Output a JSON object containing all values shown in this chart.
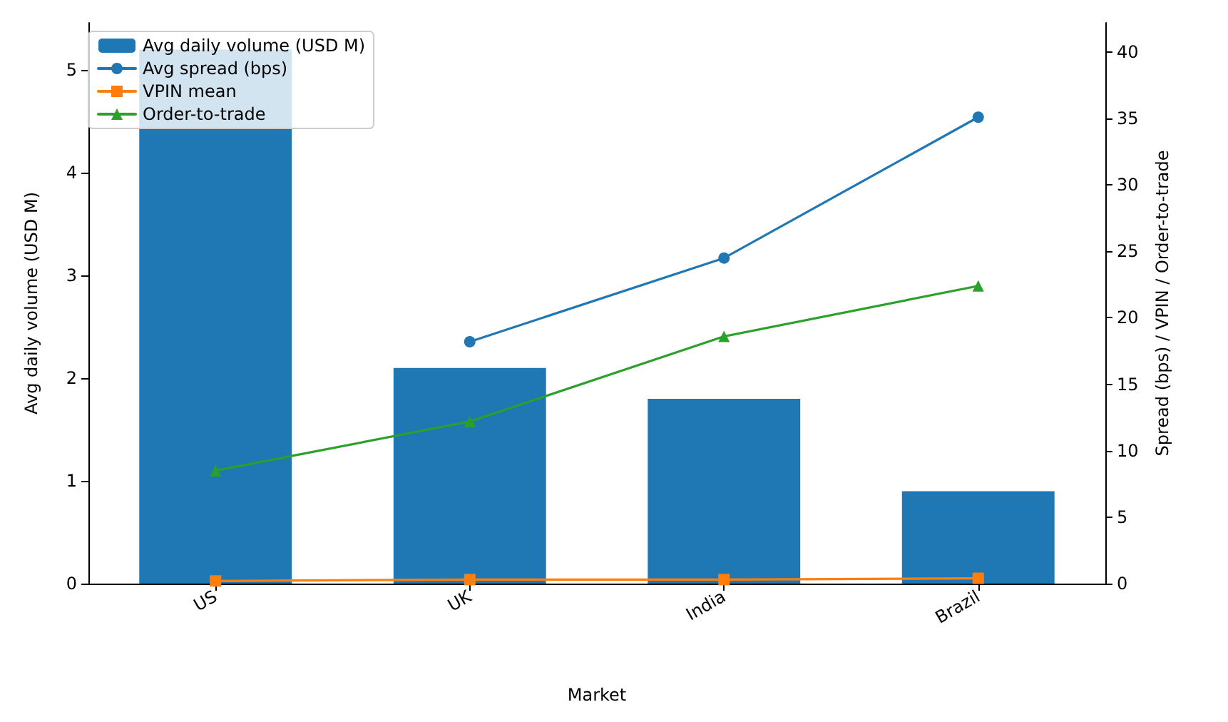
{
  "chart_data": {
    "type": "bar",
    "xlabel": "Market",
    "ylabel": "Avg daily volume (USD M)",
    "y2label": "Spread (bps) / VPIN / Order-to-trade",
    "categories": [
      "US",
      "UK",
      "India",
      "Brazil"
    ],
    "series": [
      {
        "name": "Avg daily volume (USD M)",
        "color": "#1f77b4",
        "values": [
          5.2,
          2.1,
          1.8,
          0.9
        ]
      },
      {
        "name": "Avg spread (bps)",
        "type": "line",
        "axis": "y2",
        "marker": "circle",
        "color": "#1f77b4",
        "values": [
          null,
          18.2,
          24.5,
          35.1
        ]
      },
      {
        "name": "VPIN mean",
        "type": "line",
        "axis": "y2",
        "marker": "square",
        "color": "#ff7f0e",
        "values": [
          0.2,
          0.3,
          0.3,
          0.4
        ]
      },
      {
        "name": "Order-to-trade",
        "type": "line",
        "axis": "y2",
        "marker": "triangle",
        "color": "#2ca02c",
        "values": [
          8.5,
          12.2,
          18.6,
          22.4
        ]
      }
    ],
    "ylim": [
      0,
      5.46
    ],
    "yticks": [
      0,
      1,
      2,
      3,
      4,
      5
    ],
    "y2lim": [
      0,
      42.2
    ],
    "y2ticks": [
      0,
      5,
      10,
      15,
      20,
      25,
      30,
      35,
      40
    ],
    "legend": "top left",
    "grid": false,
    "line_style": "solid"
  }
}
